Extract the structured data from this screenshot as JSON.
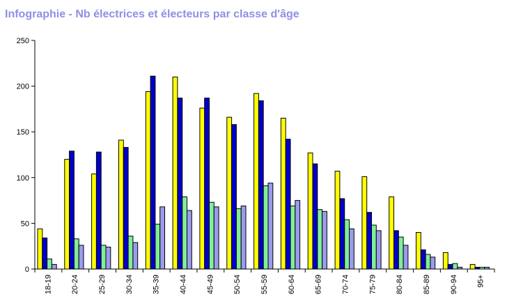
{
  "title": "Infographie - Nb électrices et électeurs par classe d'âge",
  "colors": {
    "title": "#8f8fe6",
    "series": [
      "#ffff00",
      "#0000cc",
      "#80ee99",
      "#9b9bee"
    ]
  },
  "chart_data": {
    "type": "bar",
    "title": "Infographie - Nb électrices et électeurs par classe d'âge",
    "xlabel": "",
    "ylabel": "",
    "ylim": [
      0,
      250
    ],
    "yticks": [
      "0",
      "50",
      "100",
      "150",
      "200",
      "250"
    ],
    "grid": false,
    "legend": "none",
    "categories": [
      "18-19",
      "20-24",
      "25-29",
      "30-34",
      "35-39",
      "40-44",
      "45-49",
      "50-54",
      "55-59",
      "60-64",
      "65-69",
      "70-74",
      "75-79",
      "80-84",
      "85-89",
      "90-94",
      "95+"
    ],
    "series": [
      {
        "values": [
          44,
          120,
          104,
          141,
          194,
          210,
          176,
          166,
          192,
          165,
          127,
          107,
          101,
          79,
          40,
          18,
          5
        ]
      },
      {
        "values": [
          34,
          129,
          128,
          133,
          211,
          187,
          187,
          158,
          184,
          142,
          115,
          77,
          62,
          42,
          21,
          5,
          2
        ]
      },
      {
        "values": [
          11,
          33,
          26,
          36,
          49,
          79,
          73,
          66,
          91,
          69,
          65,
          54,
          48,
          35,
          16,
          6,
          2
        ]
      },
      {
        "values": [
          5,
          26,
          24,
          29,
          68,
          64,
          68,
          69,
          94,
          75,
          63,
          44,
          42,
          26,
          13,
          2,
          2
        ]
      }
    ]
  }
}
